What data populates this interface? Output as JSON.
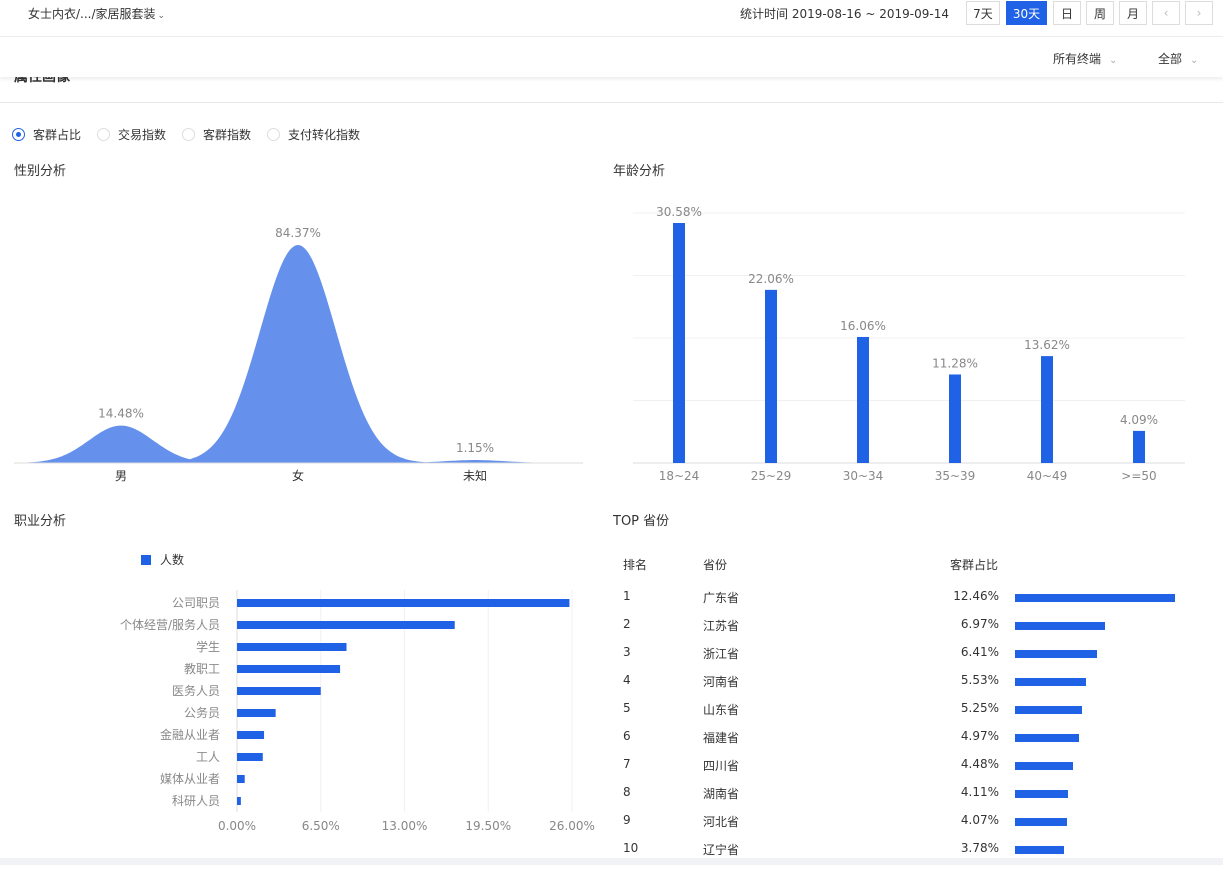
{
  "breadcrumb": "女士内衣/.../家居服套装",
  "stat_label": "统计时间 2019-08-16 ~ 2019-09-14",
  "range_buttons": [
    "7天",
    "30天",
    "日",
    "周",
    "月"
  ],
  "range_active": "30天",
  "filters": {
    "terminal": "所有终端",
    "scope": "全部"
  },
  "section_title": "属性画像",
  "radios": [
    {
      "label": "客群占比",
      "checked": true
    },
    {
      "label": "交易指数",
      "checked": false
    },
    {
      "label": "客群指数",
      "checked": false
    },
    {
      "label": "支付转化指数",
      "checked": false
    }
  ],
  "gender": {
    "title": "性别分析",
    "chart_data": {
      "type": "area",
      "categories": [
        "男",
        "女",
        "未知"
      ],
      "values": [
        14.48,
        84.37,
        1.15
      ],
      "labels": [
        "14.48%",
        "84.37%",
        "1.15%"
      ]
    }
  },
  "age": {
    "title": "年龄分析",
    "chart_data": {
      "type": "bar",
      "categories": [
        "18~24",
        "25~29",
        "30~34",
        "35~39",
        "40~49",
        ">=50"
      ],
      "values": [
        30.58,
        22.06,
        16.06,
        11.28,
        13.62,
        4.09
      ],
      "labels": [
        "30.58%",
        "22.06%",
        "16.06%",
        "11.28%",
        "13.62%",
        "4.09%"
      ],
      "color": "#2062e6"
    }
  },
  "occupation": {
    "title": "职业分析",
    "legend": "人数",
    "chart_data": {
      "type": "bar",
      "orientation": "horizontal",
      "categories": [
        "公司职员",
        "个体经营/服务人员",
        "学生",
        "教职工",
        "医务人员",
        "公务员",
        "金融从业者",
        "工人",
        "媒体从业者",
        "科研人员"
      ],
      "values": [
        25.8,
        16.9,
        8.5,
        8.0,
        6.5,
        3.0,
        2.1,
        2.0,
        0.6,
        0.3
      ],
      "xticks": [
        "0.00%",
        "6.50%",
        "13.00%",
        "19.50%",
        "26.00%"
      ],
      "xlim": [
        0,
        26
      ],
      "color": "#2062e6"
    }
  },
  "provinces": {
    "title": "TOP 省份",
    "headers": {
      "rank": "排名",
      "province": "省份",
      "share": "客群占比"
    },
    "rows": [
      {
        "rank": "1",
        "name": "广东省",
        "share": "12.46%",
        "value": 12.46
      },
      {
        "rank": "2",
        "name": "江苏省",
        "share": "6.97%",
        "value": 6.97
      },
      {
        "rank": "3",
        "name": "浙江省",
        "share": "6.41%",
        "value": 6.41
      },
      {
        "rank": "4",
        "name": "河南省",
        "share": "5.53%",
        "value": 5.53
      },
      {
        "rank": "5",
        "name": "山东省",
        "share": "5.25%",
        "value": 5.25
      },
      {
        "rank": "6",
        "name": "福建省",
        "share": "4.97%",
        "value": 4.97
      },
      {
        "rank": "7",
        "name": "四川省",
        "share": "4.48%",
        "value": 4.48
      },
      {
        "rank": "8",
        "name": "湖南省",
        "share": "4.11%",
        "value": 4.11
      },
      {
        "rank": "9",
        "name": "河北省",
        "share": "4.07%",
        "value": 4.07
      },
      {
        "rank": "10",
        "name": "辽宁省",
        "share": "3.78%",
        "value": 3.78
      }
    ]
  }
}
